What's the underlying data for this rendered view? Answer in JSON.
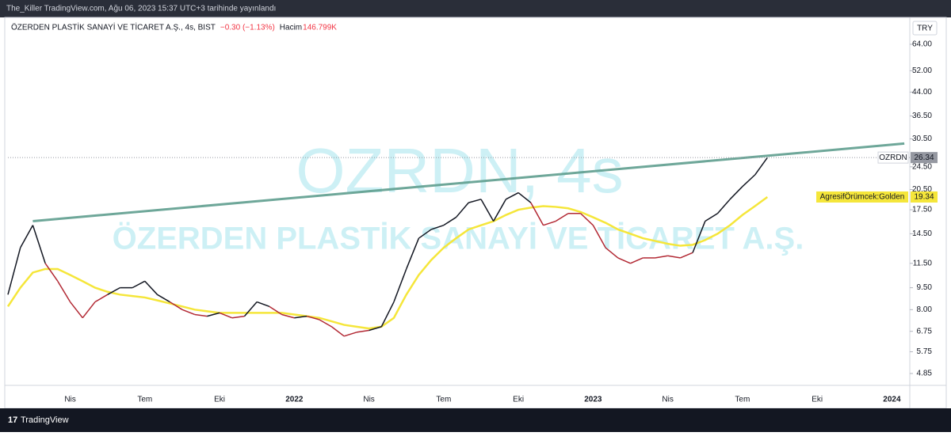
{
  "header": {
    "text": "The_Killer TradingView.com, Ağu 06, 2023 15:37 UTC+3 tarihinde yayınlandı"
  },
  "footer": {
    "brand": "TradingView"
  },
  "chart_data": {
    "type": "line",
    "title": "ÖZERDEN PLASTİK SANAYİ VE TİCARET A.Ş., 4s, BIST",
    "change": "−0.30 (−1.13%)",
    "volume_label": "Hacim",
    "volume": "146.799K",
    "currency": "TRY",
    "watermark": [
      "OZRDN, 4s",
      "ÖZERDEN PLASTİK SANAYİ VE TİCARET A.Ş."
    ],
    "log_scale": true,
    "ylim": [
      4.42,
      79
    ],
    "yticks": [
      {
        "value": 64,
        "label": "64.00"
      },
      {
        "value": 52,
        "label": "52.00"
      },
      {
        "value": 44,
        "label": "44.00"
      },
      {
        "value": 36.5,
        "label": "36.50"
      },
      {
        "value": 30.5,
        "label": "30.50"
      },
      {
        "value": 24.5,
        "label": "24.50"
      },
      {
        "value": 20.5,
        "label": "20.50"
      },
      {
        "value": 17.5,
        "label": "17.50"
      },
      {
        "value": 14.5,
        "label": "14.50"
      },
      {
        "value": 11.5,
        "label": "11.50"
      },
      {
        "value": 9.5,
        "label": "9.50"
      },
      {
        "value": 8,
        "label": "8.00"
      },
      {
        "value": 6.75,
        "label": "6.75"
      },
      {
        "value": 5.75,
        "label": "5.75"
      },
      {
        "value": 4.85,
        "label": "4.85"
      }
    ],
    "categories": [
      null,
      null,
      null,
      null,
      null,
      "Nis",
      null,
      null,
      null,
      null,
      null,
      "Tem",
      null,
      null,
      null,
      null,
      null,
      "Eki",
      null,
      null,
      null,
      null,
      null,
      "2022",
      null,
      null,
      null,
      null,
      null,
      "Nis",
      null,
      null,
      null,
      null,
      null,
      "Tem",
      null,
      null,
      null,
      null,
      null,
      "Eki",
      null,
      null,
      null,
      null,
      null,
      "2023",
      null,
      null,
      null,
      null,
      null,
      "Nis",
      null,
      null,
      null,
      null,
      null,
      "Tem",
      null,
      null,
      null,
      null,
      null,
      "Eki",
      null,
      null,
      null,
      null,
      null,
      "2024",
      null
    ],
    "series": [
      {
        "name": "OZRDN",
        "color": "#131722",
        "down_color": "#b22833",
        "values": [
          9,
          13,
          15.5,
          11.5,
          10,
          8.5,
          7.5,
          8.5,
          9,
          9.5,
          9.5,
          10,
          9,
          8.5,
          8,
          7.7,
          7.6,
          7.8,
          7.5,
          7.6,
          8.5,
          8.2,
          7.7,
          7.5,
          7.6,
          7.4,
          7.0,
          6.5,
          6.7,
          6.8,
          7.0,
          8.5,
          11,
          14,
          15,
          15.5,
          16.5,
          18.5,
          19,
          16,
          19,
          20,
          18.5,
          15.5,
          16,
          17,
          17,
          15.5,
          13,
          12,
          11.5,
          12,
          12,
          12.2,
          12,
          12.5,
          16,
          17,
          19,
          21,
          23,
          26.34,
          null,
          null,
          null,
          null,
          null,
          null,
          null,
          null,
          null,
          null,
          null
        ]
      },
      {
        "name": "AgresifÖrümcek:Golden",
        "color": "#f5e63a",
        "values": [
          8.2,
          9.5,
          10.7,
          11,
          11,
          10.5,
          10,
          9.5,
          9.2,
          9,
          8.9,
          8.8,
          8.6,
          8.4,
          8.2,
          8.0,
          7.9,
          7.8,
          7.8,
          7.8,
          7.8,
          7.8,
          7.8,
          7.7,
          7.6,
          7.5,
          7.3,
          7.1,
          7.0,
          6.9,
          7.0,
          7.5,
          9,
          10.5,
          11.8,
          13,
          14,
          15,
          15.5,
          16,
          16.8,
          17.5,
          17.8,
          18,
          17.9,
          17.7,
          17.2,
          16.5,
          15.8,
          15,
          14.5,
          14,
          13.7,
          13.4,
          13.2,
          13.3,
          13.8,
          14.5,
          15.5,
          16.8,
          18,
          19.34,
          null,
          null,
          null,
          null,
          null,
          null,
          null,
          null,
          null,
          null,
          null
        ]
      }
    ],
    "trendline": {
      "color": "#5f9e8f",
      "points": [
        {
          "index": 2,
          "value": 16
        },
        {
          "index": 72,
          "value": 29.4
        }
      ]
    }
  }
}
